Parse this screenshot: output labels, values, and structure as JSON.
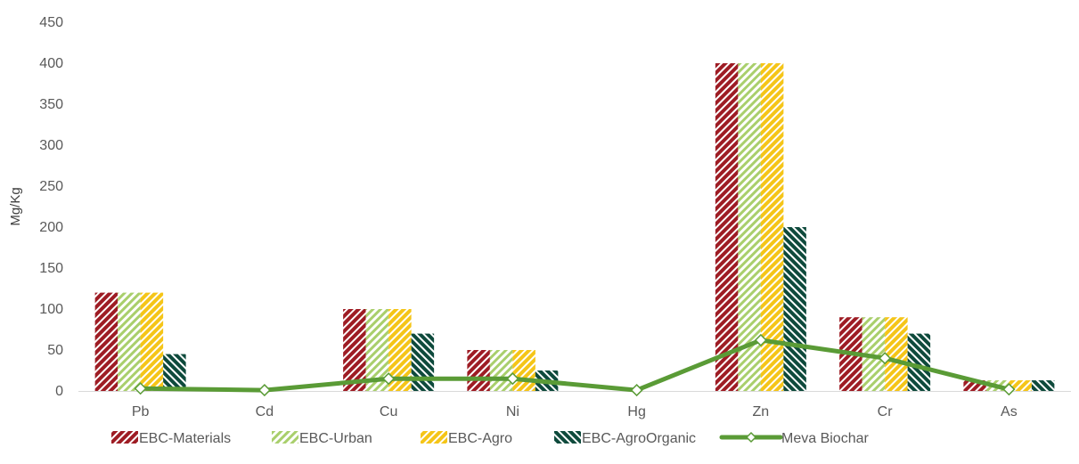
{
  "chart_data": {
    "type": "bar",
    "title": "",
    "xlabel": "",
    "ylabel": "Mg/Kg",
    "ylim": [
      0,
      450
    ],
    "yticks": [
      0,
      50,
      100,
      150,
      200,
      250,
      300,
      350,
      400,
      450
    ],
    "categories": [
      "Pb",
      "Cd",
      "Cu",
      "Ni",
      "Hg",
      "Zn",
      "Cr",
      "As"
    ],
    "grid": false,
    "legend_position": "bottom",
    "series": [
      {
        "name": "EBC-Materials",
        "kind": "bar",
        "pattern": "hatch-diagonal",
        "color": "#9e1c24",
        "values": [
          120,
          0,
          100,
          50,
          0,
          400,
          90,
          13
        ]
      },
      {
        "name": "EBC-Urban",
        "kind": "bar",
        "pattern": "hatch-diagonal-light",
        "color": "#a9cf6c",
        "values": [
          120,
          0,
          100,
          50,
          0,
          400,
          90,
          13
        ]
      },
      {
        "name": "EBC-Agro",
        "kind": "bar",
        "pattern": "hatch-diagonal",
        "color": "#f5c518",
        "values": [
          120,
          0,
          100,
          50,
          0,
          400,
          90,
          13
        ]
      },
      {
        "name": "EBC-AgroOrganic",
        "kind": "bar",
        "pattern": "hatch-reverse",
        "color": "#0e4a3c",
        "values": [
          45,
          0,
          70,
          25,
          0,
          200,
          70,
          13
        ]
      },
      {
        "name": "Meva Biochar",
        "kind": "line",
        "marker": "diamond",
        "color": "#5a9b36",
        "values": [
          3,
          1,
          15,
          15,
          1,
          62,
          40,
          2
        ]
      }
    ]
  }
}
